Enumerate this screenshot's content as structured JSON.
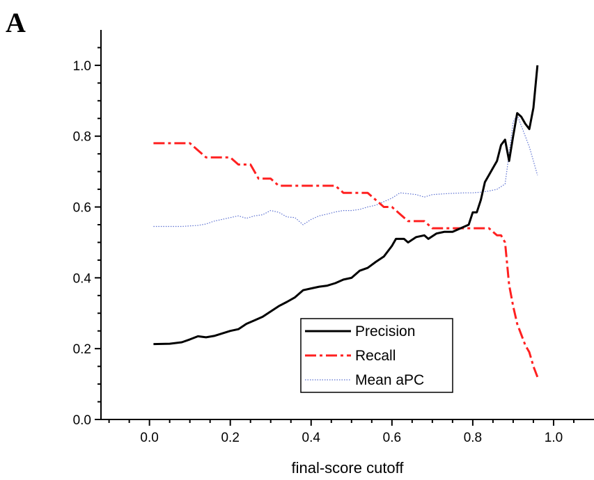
{
  "panel_label": "A",
  "chart_data": {
    "type": "line",
    "title": "",
    "xlabel": "final-score cutoff",
    "ylabel": "",
    "xlim": [
      -0.12,
      1.1
    ],
    "ylim": [
      0.0,
      1.1
    ],
    "x_ticks": [
      0.0,
      0.2,
      0.4,
      0.6,
      0.8,
      1.0
    ],
    "x_tick_labels": [
      "0.0",
      "0.2",
      "0.4",
      "0.6",
      "0.8",
      "1.0"
    ],
    "y_ticks": [
      0.0,
      0.2,
      0.4,
      0.6,
      0.8,
      1.0
    ],
    "y_tick_labels": [
      "0.0",
      "0.2",
      "0.4",
      "0.6",
      "0.8",
      "1.0"
    ],
    "grid": false,
    "legend_position": "bottom-center",
    "series": [
      {
        "name": "Precision",
        "color": "#000000",
        "style": "solid",
        "points": [
          [
            0.01,
            0.213
          ],
          [
            0.05,
            0.214
          ],
          [
            0.08,
            0.218
          ],
          [
            0.1,
            0.226
          ],
          [
            0.12,
            0.235
          ],
          [
            0.14,
            0.232
          ],
          [
            0.16,
            0.236
          ],
          [
            0.18,
            0.243
          ],
          [
            0.2,
            0.25
          ],
          [
            0.22,
            0.255
          ],
          [
            0.24,
            0.27
          ],
          [
            0.26,
            0.28
          ],
          [
            0.28,
            0.29
          ],
          [
            0.3,
            0.305
          ],
          [
            0.32,
            0.32
          ],
          [
            0.34,
            0.332
          ],
          [
            0.36,
            0.345
          ],
          [
            0.38,
            0.365
          ],
          [
            0.4,
            0.37
          ],
          [
            0.42,
            0.375
          ],
          [
            0.44,
            0.378
          ],
          [
            0.46,
            0.385
          ],
          [
            0.48,
            0.395
          ],
          [
            0.5,
            0.4
          ],
          [
            0.52,
            0.42
          ],
          [
            0.54,
            0.428
          ],
          [
            0.56,
            0.445
          ],
          [
            0.58,
            0.46
          ],
          [
            0.6,
            0.49
          ],
          [
            0.61,
            0.51
          ],
          [
            0.63,
            0.51
          ],
          [
            0.64,
            0.5
          ],
          [
            0.66,
            0.515
          ],
          [
            0.68,
            0.52
          ],
          [
            0.69,
            0.51
          ],
          [
            0.71,
            0.525
          ],
          [
            0.73,
            0.53
          ],
          [
            0.75,
            0.53
          ],
          [
            0.77,
            0.54
          ],
          [
            0.79,
            0.55
          ],
          [
            0.8,
            0.585
          ],
          [
            0.81,
            0.585
          ],
          [
            0.82,
            0.62
          ],
          [
            0.83,
            0.67
          ],
          [
            0.84,
            0.69
          ],
          [
            0.85,
            0.71
          ],
          [
            0.86,
            0.73
          ],
          [
            0.87,
            0.775
          ],
          [
            0.88,
            0.79
          ],
          [
            0.89,
            0.73
          ],
          [
            0.9,
            0.8
          ],
          [
            0.91,
            0.865
          ],
          [
            0.92,
            0.855
          ],
          [
            0.93,
            0.835
          ],
          [
            0.94,
            0.82
          ],
          [
            0.95,
            0.88
          ],
          [
            0.96,
            1.0
          ]
        ]
      },
      {
        "name": "Recall",
        "color": "#ff2020",
        "style": "dash-dot",
        "points": [
          [
            0.01,
            0.78
          ],
          [
            0.1,
            0.78
          ],
          [
            0.12,
            0.76
          ],
          [
            0.14,
            0.74
          ],
          [
            0.18,
            0.74
          ],
          [
            0.2,
            0.74
          ],
          [
            0.22,
            0.72
          ],
          [
            0.25,
            0.72
          ],
          [
            0.27,
            0.68
          ],
          [
            0.3,
            0.68
          ],
          [
            0.32,
            0.66
          ],
          [
            0.46,
            0.66
          ],
          [
            0.48,
            0.64
          ],
          [
            0.52,
            0.64
          ],
          [
            0.54,
            0.64
          ],
          [
            0.56,
            0.62
          ],
          [
            0.58,
            0.6
          ],
          [
            0.6,
            0.6
          ],
          [
            0.62,
            0.58
          ],
          [
            0.64,
            0.56
          ],
          [
            0.68,
            0.56
          ],
          [
            0.7,
            0.54
          ],
          [
            0.78,
            0.54
          ],
          [
            0.84,
            0.54
          ],
          [
            0.86,
            0.52
          ],
          [
            0.87,
            0.52
          ],
          [
            0.88,
            0.5
          ],
          [
            0.89,
            0.38
          ],
          [
            0.9,
            0.32
          ],
          [
            0.91,
            0.27
          ],
          [
            0.92,
            0.24
          ],
          [
            0.93,
            0.21
          ],
          [
            0.94,
            0.19
          ],
          [
            0.95,
            0.15
          ],
          [
            0.96,
            0.12
          ]
        ]
      },
      {
        "name": "Mean aPC",
        "color": "#5a6fd0",
        "style": "dotted",
        "points": [
          [
            0.01,
            0.545
          ],
          [
            0.04,
            0.545
          ],
          [
            0.08,
            0.545
          ],
          [
            0.12,
            0.548
          ],
          [
            0.14,
            0.552
          ],
          [
            0.16,
            0.56
          ],
          [
            0.2,
            0.57
          ],
          [
            0.22,
            0.575
          ],
          [
            0.24,
            0.568
          ],
          [
            0.26,
            0.575
          ],
          [
            0.28,
            0.578
          ],
          [
            0.3,
            0.59
          ],
          [
            0.32,
            0.585
          ],
          [
            0.34,
            0.572
          ],
          [
            0.36,
            0.57
          ],
          [
            0.38,
            0.55
          ],
          [
            0.4,
            0.565
          ],
          [
            0.42,
            0.575
          ],
          [
            0.44,
            0.58
          ],
          [
            0.46,
            0.586
          ],
          [
            0.48,
            0.59
          ],
          [
            0.5,
            0.59
          ],
          [
            0.52,
            0.593
          ],
          [
            0.54,
            0.6
          ],
          [
            0.56,
            0.605
          ],
          [
            0.58,
            0.615
          ],
          [
            0.6,
            0.625
          ],
          [
            0.62,
            0.64
          ],
          [
            0.66,
            0.635
          ],
          [
            0.68,
            0.628
          ],
          [
            0.7,
            0.635
          ],
          [
            0.74,
            0.638
          ],
          [
            0.78,
            0.64
          ],
          [
            0.8,
            0.64
          ],
          [
            0.82,
            0.642
          ],
          [
            0.84,
            0.645
          ],
          [
            0.86,
            0.65
          ],
          [
            0.88,
            0.665
          ],
          [
            0.89,
            0.75
          ],
          [
            0.9,
            0.84
          ],
          [
            0.91,
            0.86
          ],
          [
            0.92,
            0.83
          ],
          [
            0.93,
            0.8
          ],
          [
            0.94,
            0.77
          ],
          [
            0.95,
            0.73
          ],
          [
            0.96,
            0.69
          ]
        ]
      }
    ]
  }
}
